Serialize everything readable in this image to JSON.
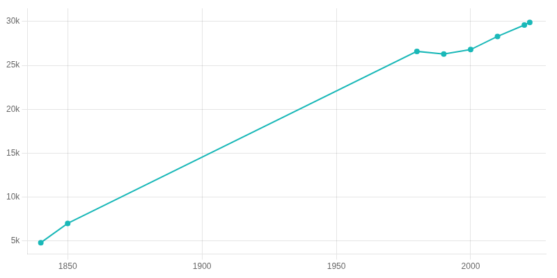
{
  "chart_data": {
    "type": "line",
    "x": [
      1840,
      1850,
      1980,
      1990,
      2000,
      2010,
      2020,
      2022
    ],
    "values": [
      4800,
      7000,
      26600,
      26300,
      26800,
      28300,
      29600,
      29900
    ],
    "color": "#1ab8b8",
    "marker": "circle",
    "xlim": [
      1835,
      2028
    ],
    "xticks": [
      1850,
      1900,
      1950,
      2000
    ],
    "ylim": [
      3500,
      31500
    ],
    "yticks": [
      {
        "value": 5000,
        "label": "5k"
      },
      {
        "value": 10000,
        "label": "10k"
      },
      {
        "value": 15000,
        "label": "15k"
      },
      {
        "value": 20000,
        "label": "20k"
      },
      {
        "value": 25000,
        "label": "25k"
      },
      {
        "value": 30000,
        "label": "30k"
      }
    ],
    "grid": true
  }
}
